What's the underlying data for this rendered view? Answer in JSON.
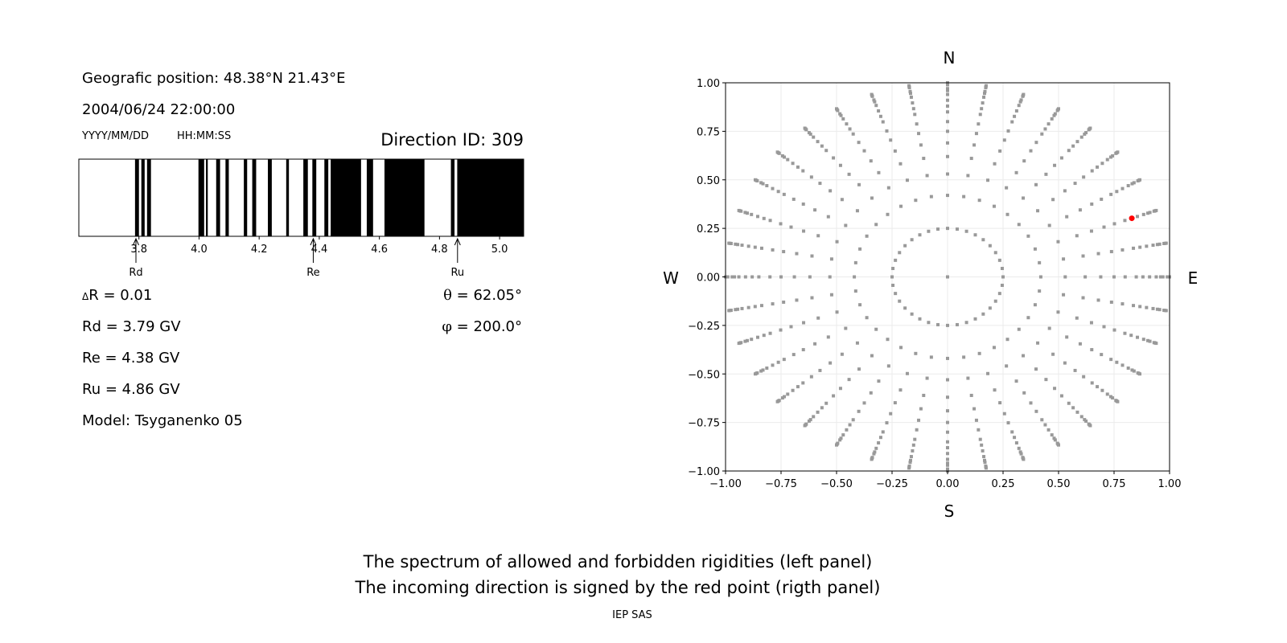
{
  "header": {
    "position": "Geografic position: 48.38°N 21.43°E",
    "datetime": "2004/06/24 22:00:00",
    "date_format": "YYYY/MM/DD",
    "time_format": "HH:MM:SS",
    "direction_id": "Direction ID: 309"
  },
  "params": {
    "delta_r_symbol": "Δ",
    "delta_r": "R = 0.01",
    "rd": "Rd = 3.79 GV",
    "re": "Re = 4.38 GV",
    "ru": "Ru = 4.86 GV",
    "model": "Model: Tsyganenko 05",
    "theta_symbol": "θ",
    "theta": " = 62.05°",
    "phi_symbol": "φ",
    "phi": " = 200.0°"
  },
  "caption": {
    "line1": "The spectrum of allowed and forbidden rigidities (left panel)",
    "line2": "The incoming direction is signed by the red point (rigth panel)",
    "credit": "IEP SAS"
  },
  "compass": {
    "n": "N",
    "s": "S",
    "w": "W",
    "e": "E"
  },
  "chart_data": [
    {
      "type": "bar",
      "xlim": [
        3.6,
        5.08
      ],
      "xticks": [
        3.8,
        4.0,
        4.2,
        4.4,
        4.6,
        4.8,
        5.0
      ],
      "xtick_labels": [
        "3.8",
        "4.0",
        "4.2",
        "4.4",
        "4.6",
        "4.8",
        "5.0"
      ],
      "forbidden_bands": [
        [
          3.787,
          3.8
        ],
        [
          3.808,
          3.819
        ],
        [
          3.827,
          3.84
        ],
        [
          3.998,
          4.017
        ],
        [
          4.023,
          4.029
        ],
        [
          4.057,
          4.07
        ],
        [
          4.088,
          4.099
        ],
        [
          4.149,
          4.16
        ],
        [
          4.177,
          4.19
        ],
        [
          4.229,
          4.242
        ],
        [
          4.29,
          4.299
        ],
        [
          4.347,
          4.362
        ],
        [
          4.377,
          4.39
        ],
        [
          4.417,
          4.43
        ],
        [
          4.438,
          4.539
        ],
        [
          4.558,
          4.579
        ],
        [
          4.617,
          4.75
        ],
        [
          4.838,
          4.85
        ],
        [
          4.859,
          5.08
        ]
      ],
      "band_color": "#000000",
      "markers": [
        {
          "label": "Rd",
          "value": 3.79
        },
        {
          "label": "Re",
          "value": 4.38
        },
        {
          "label": "Ru",
          "value": 4.86
        }
      ]
    },
    {
      "type": "scatter",
      "xlim": [
        -1,
        1
      ],
      "ylim": [
        -1,
        1
      ],
      "xticks": [
        "−1.00",
        "−0.75",
        "−0.50",
        "−0.25",
        "0.00",
        "0.25",
        "0.50",
        "0.75",
        "1.00"
      ],
      "yticks": [
        "−1.00",
        "−0.75",
        "−0.50",
        "−0.25",
        "0.00",
        "0.25",
        "0.50",
        "0.75",
        "1.00"
      ],
      "grid": true,
      "radii": [
        0.25,
        0.42,
        0.53,
        0.62,
        0.69,
        0.75,
        0.8,
        0.85,
        0.88,
        0.91,
        0.94,
        0.96,
        0.97,
        0.99,
        0.995,
        1.0
      ],
      "azimuth_step_deg": 10,
      "center_point": [
        0,
        0
      ],
      "point_color": "#999999",
      "highlight": {
        "x": 0.83,
        "y": 0.302,
        "color": "#ff0000"
      }
    }
  ]
}
